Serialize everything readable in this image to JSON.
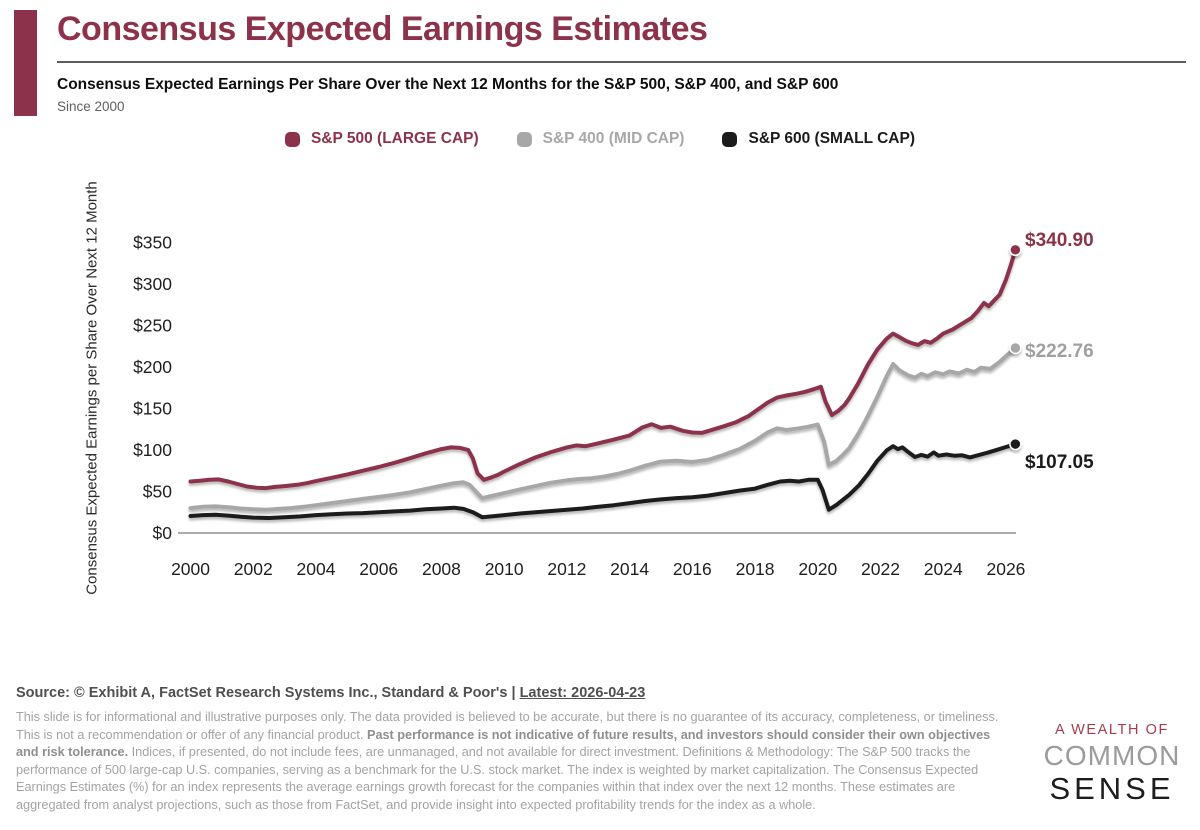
{
  "header": {
    "title": "Consensus Expected Earnings Estimates",
    "subtitle": "Consensus Expected Earnings Per Share Over the Next 12 Months for the S&P 500, S&P 400, and S&P 600",
    "since": "Since 2000"
  },
  "chart_data": {
    "type": "line",
    "title": "Consensus Expected Earnings Estimates",
    "ylabel": "Consensus Expected Earnings per Share Over Next 12 Month",
    "xlabel": "",
    "grid": false,
    "legend_position": "top",
    "xlim": [
      1999.6,
      2026.32
    ],
    "ylim": [
      0,
      437
    ],
    "x_ticks": [
      2000,
      2002,
      2004,
      2006,
      2008,
      2010,
      2012,
      2014,
      2016,
      2018,
      2020,
      2022,
      2024,
      2026
    ],
    "y_ticks": [
      0,
      50,
      100,
      150,
      200,
      250,
      300,
      350
    ],
    "y_tick_prefix": "$",
    "series": [
      {
        "name": "S&P 500 (LARGE CAP)",
        "color": "#8C324B",
        "end_value": 340.9,
        "end_label": "$340.90",
        "points": [
          [
            2000.0,
            62
          ],
          [
            2000.3,
            63
          ],
          [
            2000.6,
            64
          ],
          [
            2000.9,
            64.5
          ],
          [
            2001.2,
            62
          ],
          [
            2001.5,
            59
          ],
          [
            2001.8,
            56
          ],
          [
            2002.1,
            54.5
          ],
          [
            2002.4,
            54
          ],
          [
            2002.7,
            55.5
          ],
          [
            2003.0,
            56.5
          ],
          [
            2003.4,
            58
          ],
          [
            2003.7,
            60
          ],
          [
            2004.0,
            62.5
          ],
          [
            2004.5,
            66.5
          ],
          [
            2005.0,
            70.5
          ],
          [
            2005.5,
            75
          ],
          [
            2006.0,
            79.5
          ],
          [
            2006.5,
            84.5
          ],
          [
            2007.0,
            90
          ],
          [
            2007.5,
            96
          ],
          [
            2008.0,
            101
          ],
          [
            2008.3,
            103
          ],
          [
            2008.6,
            102.5
          ],
          [
            2008.85,
            100
          ],
          [
            2009.0,
            90
          ],
          [
            2009.15,
            72
          ],
          [
            2009.35,
            64
          ],
          [
            2009.6,
            67
          ],
          [
            2009.8,
            70
          ],
          [
            2010.0,
            74
          ],
          [
            2010.5,
            83
          ],
          [
            2011.0,
            91
          ],
          [
            2011.5,
            97.5
          ],
          [
            2012.0,
            103
          ],
          [
            2012.3,
            105.5
          ],
          [
            2012.6,
            104.5
          ],
          [
            2013.0,
            108
          ],
          [
            2013.5,
            112.5
          ],
          [
            2014.0,
            117.5
          ],
          [
            2014.4,
            127
          ],
          [
            2014.7,
            131
          ],
          [
            2015.0,
            126.5
          ],
          [
            2015.3,
            128
          ],
          [
            2015.7,
            123
          ],
          [
            2016.0,
            121
          ],
          [
            2016.3,
            120.5
          ],
          [
            2016.7,
            125
          ],
          [
            2017.0,
            128.5
          ],
          [
            2017.4,
            133.5
          ],
          [
            2017.8,
            141
          ],
          [
            2018.1,
            149
          ],
          [
            2018.4,
            157
          ],
          [
            2018.7,
            163
          ],
          [
            2019.0,
            165.5
          ],
          [
            2019.3,
            167.5
          ],
          [
            2019.6,
            170
          ],
          [
            2019.9,
            173.5
          ],
          [
            2020.1,
            176
          ],
          [
            2020.25,
            158
          ],
          [
            2020.45,
            142
          ],
          [
            2020.65,
            147
          ],
          [
            2020.85,
            154
          ],
          [
            2021.0,
            162
          ],
          [
            2021.3,
            181
          ],
          [
            2021.6,
            203
          ],
          [
            2021.9,
            221
          ],
          [
            2022.2,
            234
          ],
          [
            2022.4,
            240
          ],
          [
            2022.6,
            236
          ],
          [
            2022.8,
            231.5
          ],
          [
            2023.0,
            228.5
          ],
          [
            2023.2,
            226.5
          ],
          [
            2023.4,
            231
          ],
          [
            2023.6,
            229
          ],
          [
            2023.8,
            234
          ],
          [
            2024.0,
            240
          ],
          [
            2024.3,
            245
          ],
          [
            2024.6,
            252
          ],
          [
            2024.9,
            259
          ],
          [
            2025.1,
            267
          ],
          [
            2025.3,
            277
          ],
          [
            2025.45,
            273
          ],
          [
            2025.6,
            279
          ],
          [
            2025.8,
            287
          ],
          [
            2026.0,
            305
          ],
          [
            2026.15,
            322
          ],
          [
            2026.3,
            340.9
          ]
        ]
      },
      {
        "name": "S&P 400 (MID CAP)",
        "color": "#A7A7A7",
        "end_value": 222.76,
        "end_label": "$222.76",
        "points": [
          [
            2000.0,
            30
          ],
          [
            2000.4,
            31.5
          ],
          [
            2000.8,
            32
          ],
          [
            2001.2,
            31
          ],
          [
            2001.6,
            29.5
          ],
          [
            2002.0,
            28.5
          ],
          [
            2002.4,
            28
          ],
          [
            2002.8,
            29
          ],
          [
            2003.2,
            30
          ],
          [
            2003.6,
            31.5
          ],
          [
            2004.0,
            33.5
          ],
          [
            2004.5,
            36
          ],
          [
            2005.0,
            38.5
          ],
          [
            2005.5,
            41
          ],
          [
            2006.0,
            43.5
          ],
          [
            2006.5,
            46
          ],
          [
            2007.0,
            49
          ],
          [
            2007.5,
            53
          ],
          [
            2008.0,
            57
          ],
          [
            2008.4,
            60
          ],
          [
            2008.7,
            61
          ],
          [
            2008.9,
            58
          ],
          [
            2009.1,
            50
          ],
          [
            2009.3,
            42
          ],
          [
            2009.6,
            44.5
          ],
          [
            2010.0,
            48
          ],
          [
            2010.5,
            52.5
          ],
          [
            2011.0,
            56.5
          ],
          [
            2011.5,
            60.5
          ],
          [
            2012.0,
            63.5
          ],
          [
            2012.4,
            65
          ],
          [
            2012.8,
            66
          ],
          [
            2013.2,
            68
          ],
          [
            2013.6,
            71
          ],
          [
            2014.0,
            75
          ],
          [
            2014.5,
            81
          ],
          [
            2015.0,
            86
          ],
          [
            2015.5,
            87
          ],
          [
            2016.0,
            85.5
          ],
          [
            2016.5,
            88
          ],
          [
            2017.0,
            94
          ],
          [
            2017.5,
            101
          ],
          [
            2018.0,
            111
          ],
          [
            2018.4,
            121
          ],
          [
            2018.7,
            126
          ],
          [
            2019.0,
            124
          ],
          [
            2019.4,
            126
          ],
          [
            2019.7,
            128
          ],
          [
            2020.0,
            130.5
          ],
          [
            2020.2,
            110
          ],
          [
            2020.35,
            82
          ],
          [
            2020.6,
            87
          ],
          [
            2020.8,
            94
          ],
          [
            2021.0,
            102
          ],
          [
            2021.3,
            120
          ],
          [
            2021.6,
            141
          ],
          [
            2021.9,
            164
          ],
          [
            2022.2,
            189
          ],
          [
            2022.4,
            203.5
          ],
          [
            2022.6,
            196
          ],
          [
            2022.9,
            189.5
          ],
          [
            2023.1,
            187
          ],
          [
            2023.3,
            191.5
          ],
          [
            2023.5,
            189
          ],
          [
            2023.75,
            193.5
          ],
          [
            2024.0,
            191
          ],
          [
            2024.2,
            194.5
          ],
          [
            2024.5,
            192
          ],
          [
            2024.75,
            196.5
          ],
          [
            2025.0,
            194
          ],
          [
            2025.2,
            199
          ],
          [
            2025.5,
            197.5
          ],
          [
            2025.8,
            206
          ],
          [
            2026.0,
            213
          ],
          [
            2026.3,
            222.76
          ]
        ]
      },
      {
        "name": "S&P 600 (SMALL CAP)",
        "color": "#1B1B1B",
        "end_value": 107.05,
        "end_label": "$107.05",
        "points": [
          [
            2000.0,
            20.5
          ],
          [
            2000.4,
            21.5
          ],
          [
            2000.8,
            22
          ],
          [
            2001.2,
            21
          ],
          [
            2001.6,
            19.5
          ],
          [
            2002.0,
            18.5
          ],
          [
            2002.5,
            18
          ],
          [
            2003.0,
            19
          ],
          [
            2003.5,
            20
          ],
          [
            2004.0,
            21.5
          ],
          [
            2004.5,
            22.5
          ],
          [
            2005.0,
            23.5
          ],
          [
            2005.5,
            24
          ],
          [
            2006.0,
            25
          ],
          [
            2006.5,
            26
          ],
          [
            2007.0,
            27
          ],
          [
            2007.5,
            28.5
          ],
          [
            2008.0,
            29.5
          ],
          [
            2008.4,
            30.5
          ],
          [
            2008.7,
            29
          ],
          [
            2009.0,
            25
          ],
          [
            2009.3,
            19
          ],
          [
            2009.6,
            20
          ],
          [
            2010.0,
            21.5
          ],
          [
            2010.5,
            23.5
          ],
          [
            2011.0,
            25
          ],
          [
            2011.5,
            26.5
          ],
          [
            2012.0,
            28
          ],
          [
            2012.5,
            29.5
          ],
          [
            2013.0,
            31.5
          ],
          [
            2013.5,
            33.5
          ],
          [
            2014.0,
            36
          ],
          [
            2014.5,
            38.5
          ],
          [
            2015.0,
            40.5
          ],
          [
            2015.5,
            42
          ],
          [
            2016.0,
            43
          ],
          [
            2016.5,
            45
          ],
          [
            2017.0,
            48
          ],
          [
            2017.5,
            51
          ],
          [
            2018.0,
            53.5
          ],
          [
            2018.4,
            58
          ],
          [
            2018.8,
            62
          ],
          [
            2019.1,
            63
          ],
          [
            2019.4,
            62
          ],
          [
            2019.7,
            64
          ],
          [
            2020.0,
            64
          ],
          [
            2020.15,
            52
          ],
          [
            2020.35,
            28
          ],
          [
            2020.6,
            34
          ],
          [
            2020.8,
            40
          ],
          [
            2021.0,
            46
          ],
          [
            2021.3,
            57
          ],
          [
            2021.6,
            71
          ],
          [
            2021.9,
            87
          ],
          [
            2022.2,
            99.5
          ],
          [
            2022.4,
            104.5
          ],
          [
            2022.55,
            101
          ],
          [
            2022.7,
            103
          ],
          [
            2022.9,
            97
          ],
          [
            2023.1,
            91.5
          ],
          [
            2023.3,
            94
          ],
          [
            2023.5,
            92
          ],
          [
            2023.7,
            97
          ],
          [
            2023.85,
            93
          ],
          [
            2024.1,
            94.5
          ],
          [
            2024.35,
            93
          ],
          [
            2024.6,
            93.5
          ],
          [
            2024.85,
            91
          ],
          [
            2025.1,
            93.5
          ],
          [
            2025.4,
            96.5
          ],
          [
            2025.7,
            100
          ],
          [
            2026.0,
            103.5
          ],
          [
            2026.3,
            107.05
          ]
        ]
      }
    ]
  },
  "footer": {
    "source_plain": "Source: © Exhibit A, FactSet Research Systems Inc., Standard & Poor's | ",
    "source_latest": "Latest: 2026-04-23",
    "disclaimer_segments": [
      {
        "bold": false,
        "text": "This slide is for informational and illustrative purposes only. The data provided is believed to be accurate, but there is no guarantee of its accuracy, completeness, or timeliness. This is not a recommendation or offer of any financial product. "
      },
      {
        "bold": true,
        "text": "Past performance is not indicative of future results, and investors should consider their own objectives and risk tolerance."
      },
      {
        "bold": false,
        "text": " Indices, if presented, do not include fees, are unmanaged, and not available for direct investment. Definitions & Methodology: The S&P 500 tracks the performance of 500 large-cap U.S. companies, serving as a benchmark for the U.S. stock market. The index is weighted by market capitalization. The Consensus Expected Earnings Estimates (%) for an index represents the average earnings growth forecast for the companies within that index over the next 12 months. These estimates are aggregated from analyst projections, such as those from FactSet, and provide insight into expected profitability trends for the index as a whole."
      }
    ]
  },
  "logo": {
    "line1": "A WEALTH OF",
    "line2": "COMMON",
    "line3": "SENSE"
  },
  "colors": {
    "accent": "#8C324B",
    "mid_cap_gray": "#A7A7A7",
    "small_cap_black": "#1B1B1B",
    "logo_red": "#A23E50"
  }
}
